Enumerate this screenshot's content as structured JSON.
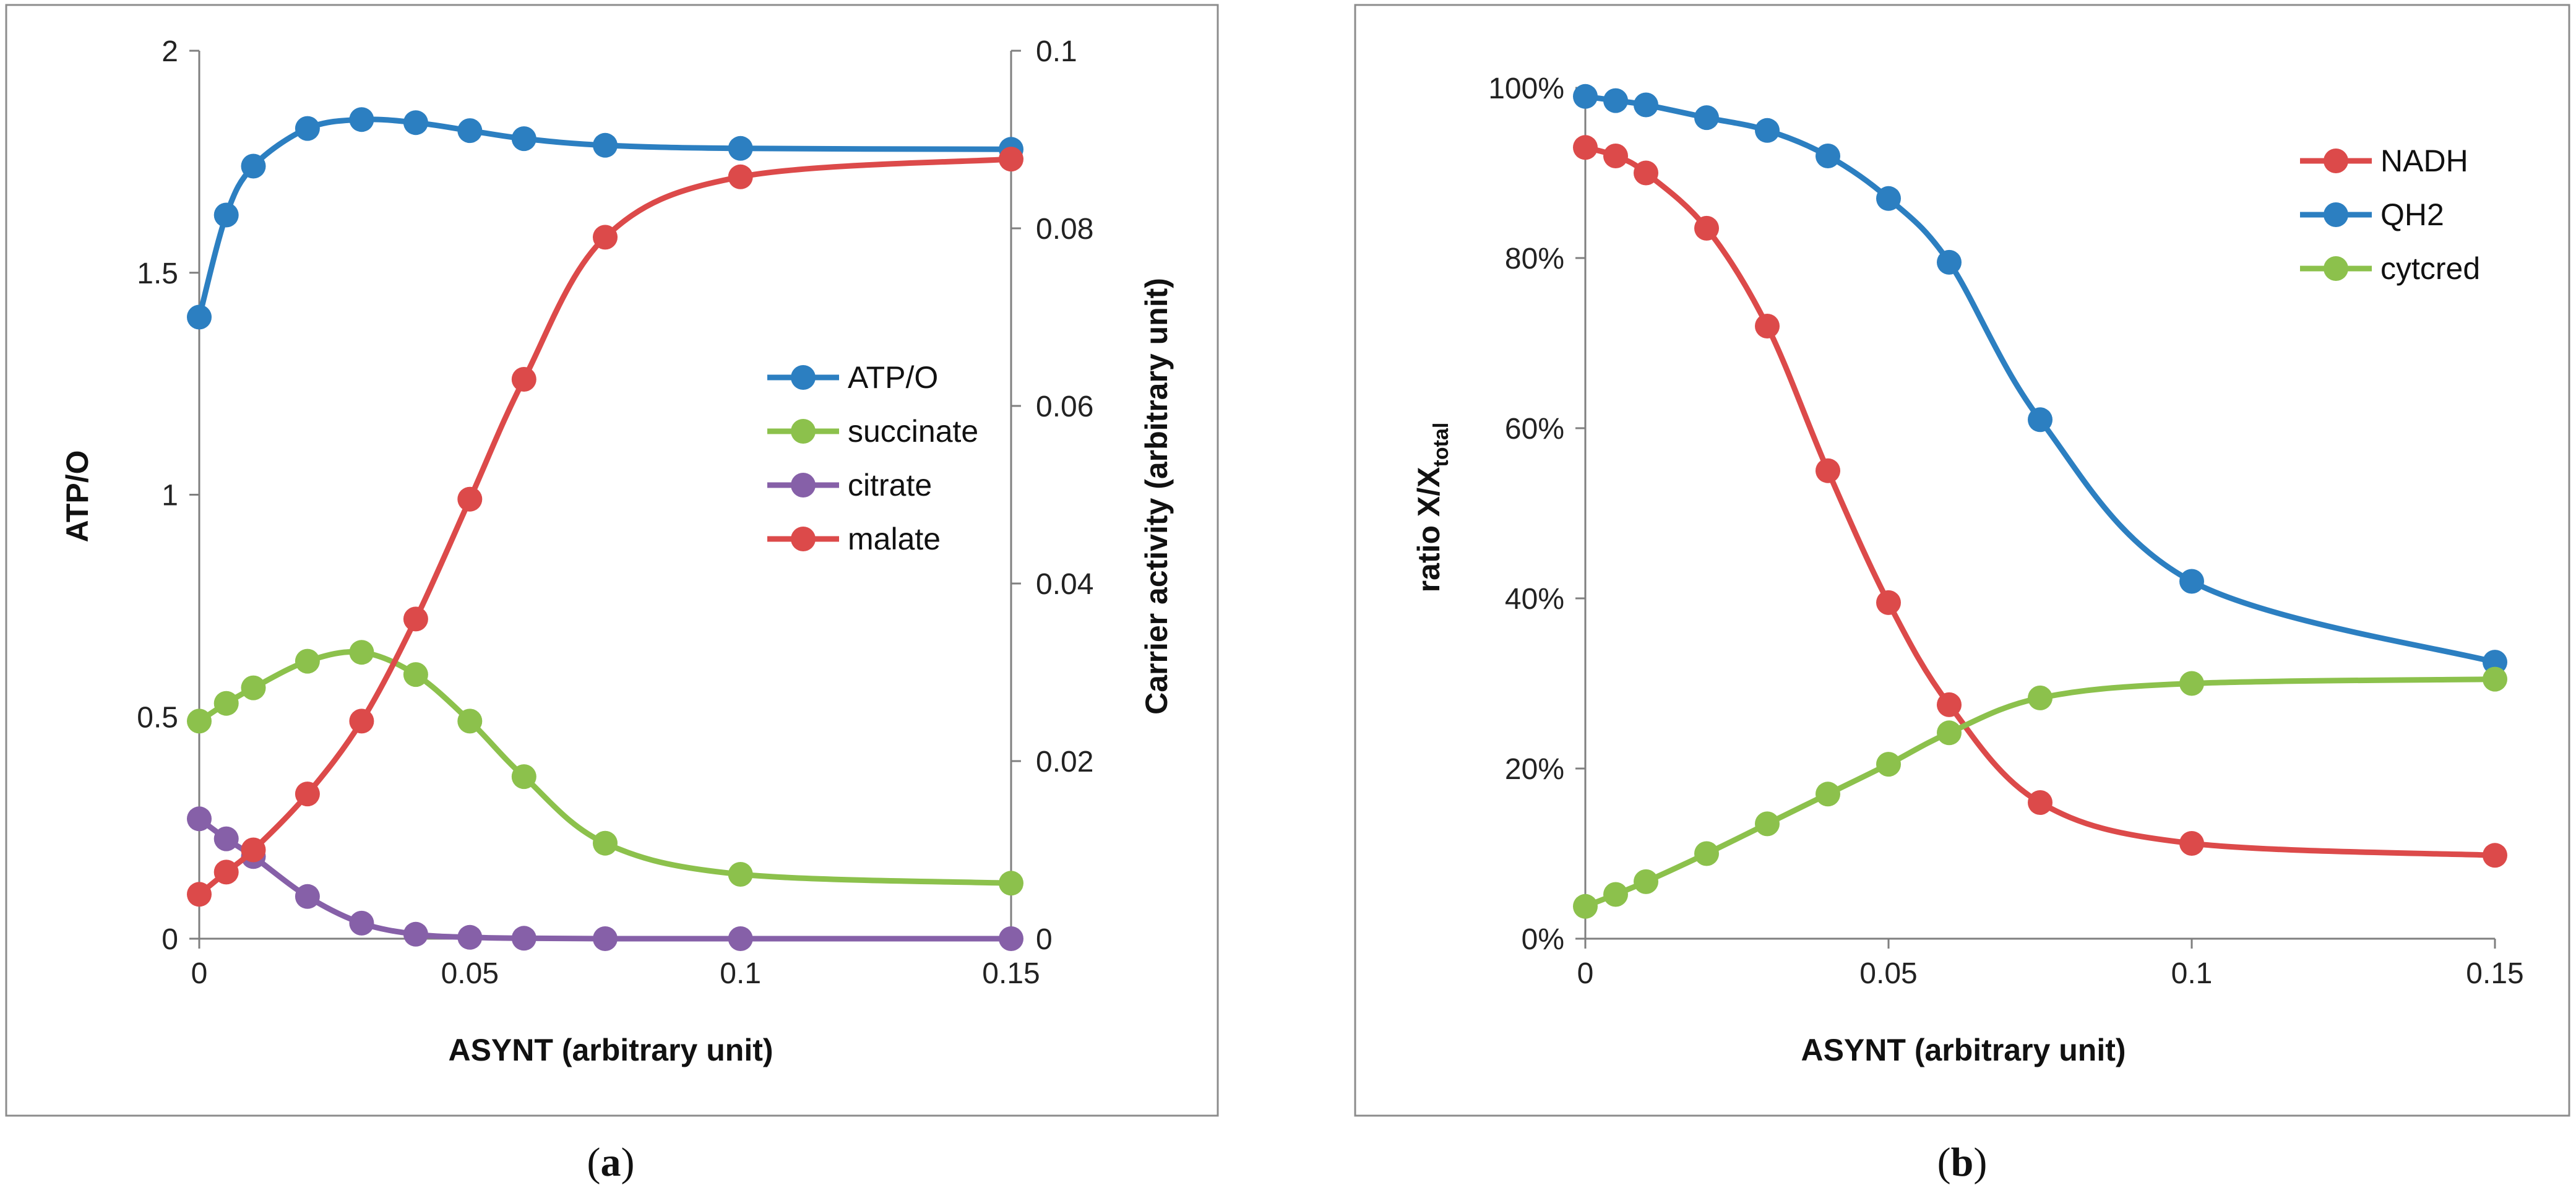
{
  "panel_labels": {
    "a": "a",
    "b": "b"
  },
  "chart_data": [
    {
      "id": "a",
      "type": "line",
      "xlabel": "ASYNT (arbitrary unit)",
      "ylabel": "ATP/O",
      "y2label": "Carrier activity (arbitrary unit)",
      "xlim": [
        0,
        0.15
      ],
      "ylim": [
        0,
        2
      ],
      "y2lim": [
        0,
        0.1
      ],
      "xticks": [
        "0",
        "0.05",
        "0.1",
        "0.15"
      ],
      "yticks": [
        "0",
        "0.5",
        "1",
        "1.5",
        "2"
      ],
      "y2ticks": [
        "0",
        "0.02",
        "0.04",
        "0.06",
        "0.08",
        "0.1"
      ],
      "legend_position": "center-right",
      "series": [
        {
          "name": "ATP/O",
          "color": "#2c7fc1",
          "axis": "left",
          "x": [
            0,
            0.005,
            0.01,
            0.02,
            0.03,
            0.04,
            0.05,
            0.06,
            0.075,
            0.1,
            0.15
          ],
          "y": [
            1.4,
            1.63,
            1.74,
            1.825,
            1.845,
            1.838,
            1.82,
            1.802,
            1.787,
            1.78,
            1.778
          ]
        },
        {
          "name": "succinate",
          "color": "#8cc14c",
          "axis": "left",
          "x": [
            0,
            0.005,
            0.01,
            0.02,
            0.03,
            0.04,
            0.05,
            0.06,
            0.075,
            0.1,
            0.15
          ],
          "y": [
            0.49,
            0.53,
            0.565,
            0.625,
            0.645,
            0.595,
            0.49,
            0.365,
            0.215,
            0.145,
            0.125
          ]
        },
        {
          "name": "citrate",
          "color": "#8660a8",
          "axis": "left",
          "x": [
            0,
            0.005,
            0.01,
            0.02,
            0.03,
            0.04,
            0.05,
            0.06,
            0.075,
            0.1,
            0.15
          ],
          "y": [
            0.27,
            0.225,
            0.185,
            0.095,
            0.035,
            0.01,
            0.003,
            0.001,
            0,
            0,
            0
          ]
        },
        {
          "name": "malate",
          "color": "#dc4a4a",
          "axis": "right",
          "x": [
            0,
            0.005,
            0.01,
            0.02,
            0.03,
            0.04,
            0.05,
            0.06,
            0.075,
            0.1,
            0.15
          ],
          "y": [
            0.005,
            0.0075,
            0.01,
            0.0163,
            0.0245,
            0.036,
            0.0495,
            0.063,
            0.079,
            0.0858,
            0.0878
          ]
        }
      ]
    },
    {
      "id": "b",
      "type": "line",
      "xlabel": "ASYNT (arbitrary unit)",
      "ylabel_main": "ratio  X/X",
      "ylabel_sub": "total",
      "xlim": [
        0,
        0.15
      ],
      "ylim": [
        0,
        100
      ],
      "xticks": [
        "0",
        "0.05",
        "0.1",
        "0.15"
      ],
      "yticks": [
        "0%",
        "20%",
        "40%",
        "60%",
        "80%",
        "100%"
      ],
      "legend_position": "top-right",
      "series": [
        {
          "name": "NADH",
          "color": "#dc4a4a",
          "x": [
            0,
            0.005,
            0.01,
            0.02,
            0.03,
            0.04,
            0.05,
            0.06,
            0.075,
            0.1,
            0.15
          ],
          "y": [
            93,
            92,
            90,
            83.5,
            72,
            55,
            39.5,
            27.5,
            16,
            11.2,
            9.8
          ]
        },
        {
          "name": "QH2",
          "color": "#2c7fc1",
          "x": [
            0,
            0.005,
            0.01,
            0.02,
            0.03,
            0.04,
            0.05,
            0.06,
            0.075,
            0.1,
            0.15
          ],
          "y": [
            99,
            98.5,
            98,
            96.5,
            95,
            92,
            87,
            79.5,
            61,
            42,
            32.5
          ]
        },
        {
          "name": "cytcred",
          "color": "#8cc14c",
          "x": [
            0,
            0.005,
            0.01,
            0.02,
            0.03,
            0.04,
            0.05,
            0.06,
            0.075,
            0.1,
            0.15
          ],
          "y": [
            3.8,
            5.2,
            6.7,
            10,
            13.5,
            17,
            20.5,
            24.2,
            28.3,
            30,
            30.5
          ]
        }
      ]
    }
  ]
}
